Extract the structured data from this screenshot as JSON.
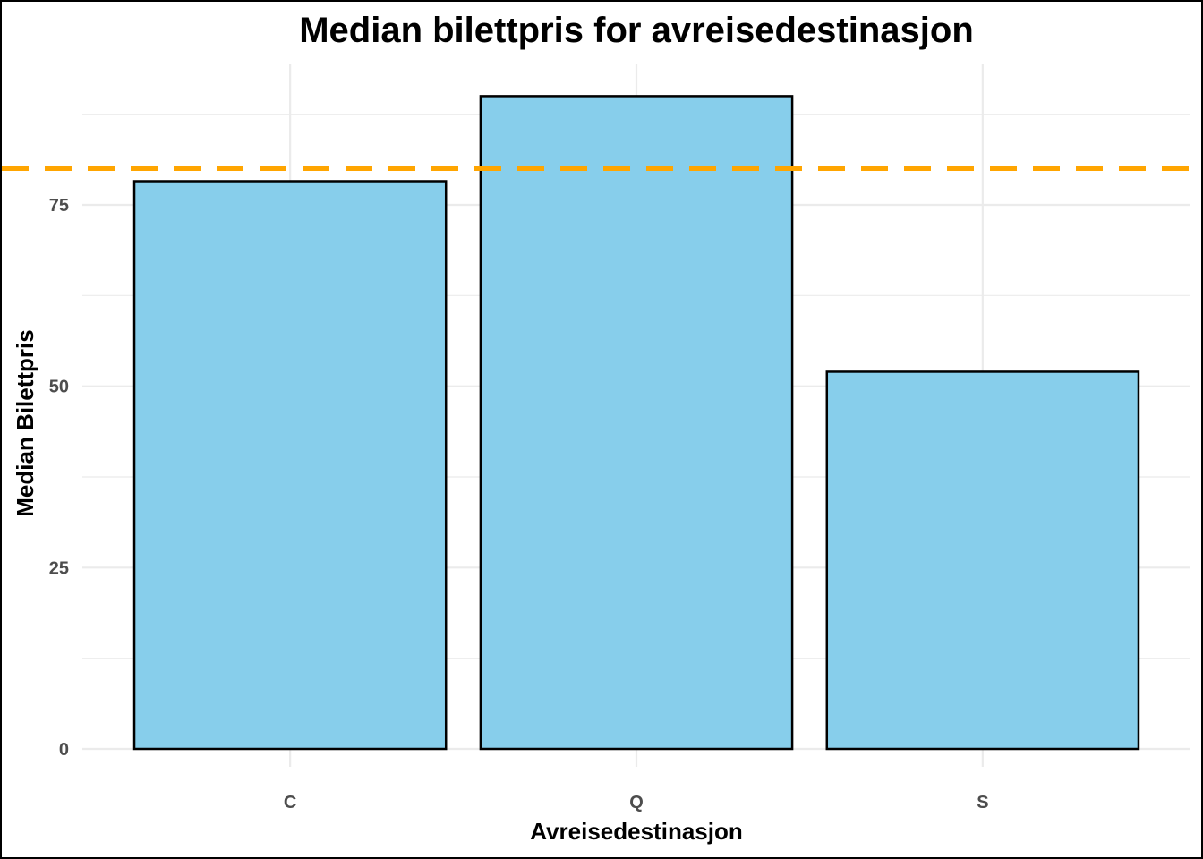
{
  "chart_data": {
    "type": "bar",
    "title": "Median bilettpris for avreisedestinasjon",
    "xlabel": "Avreisedestinasjon",
    "ylabel": "Median Bilettpris",
    "categories": [
      "C",
      "Q",
      "S"
    ],
    "values": [
      78.27,
      90.0,
      52.0
    ],
    "ylim": [
      0,
      95
    ],
    "yticks": [
      0,
      25,
      50,
      75
    ],
    "grid": true,
    "legend": "none",
    "reference_line": {
      "value": 80,
      "style": "dashed",
      "color": "#FFA500"
    },
    "colors": {
      "bar_fill": "#87CEEB",
      "bar_outline": "#000000",
      "grid": "#EBEBEB",
      "tick_text": "#4D4D4D"
    }
  }
}
